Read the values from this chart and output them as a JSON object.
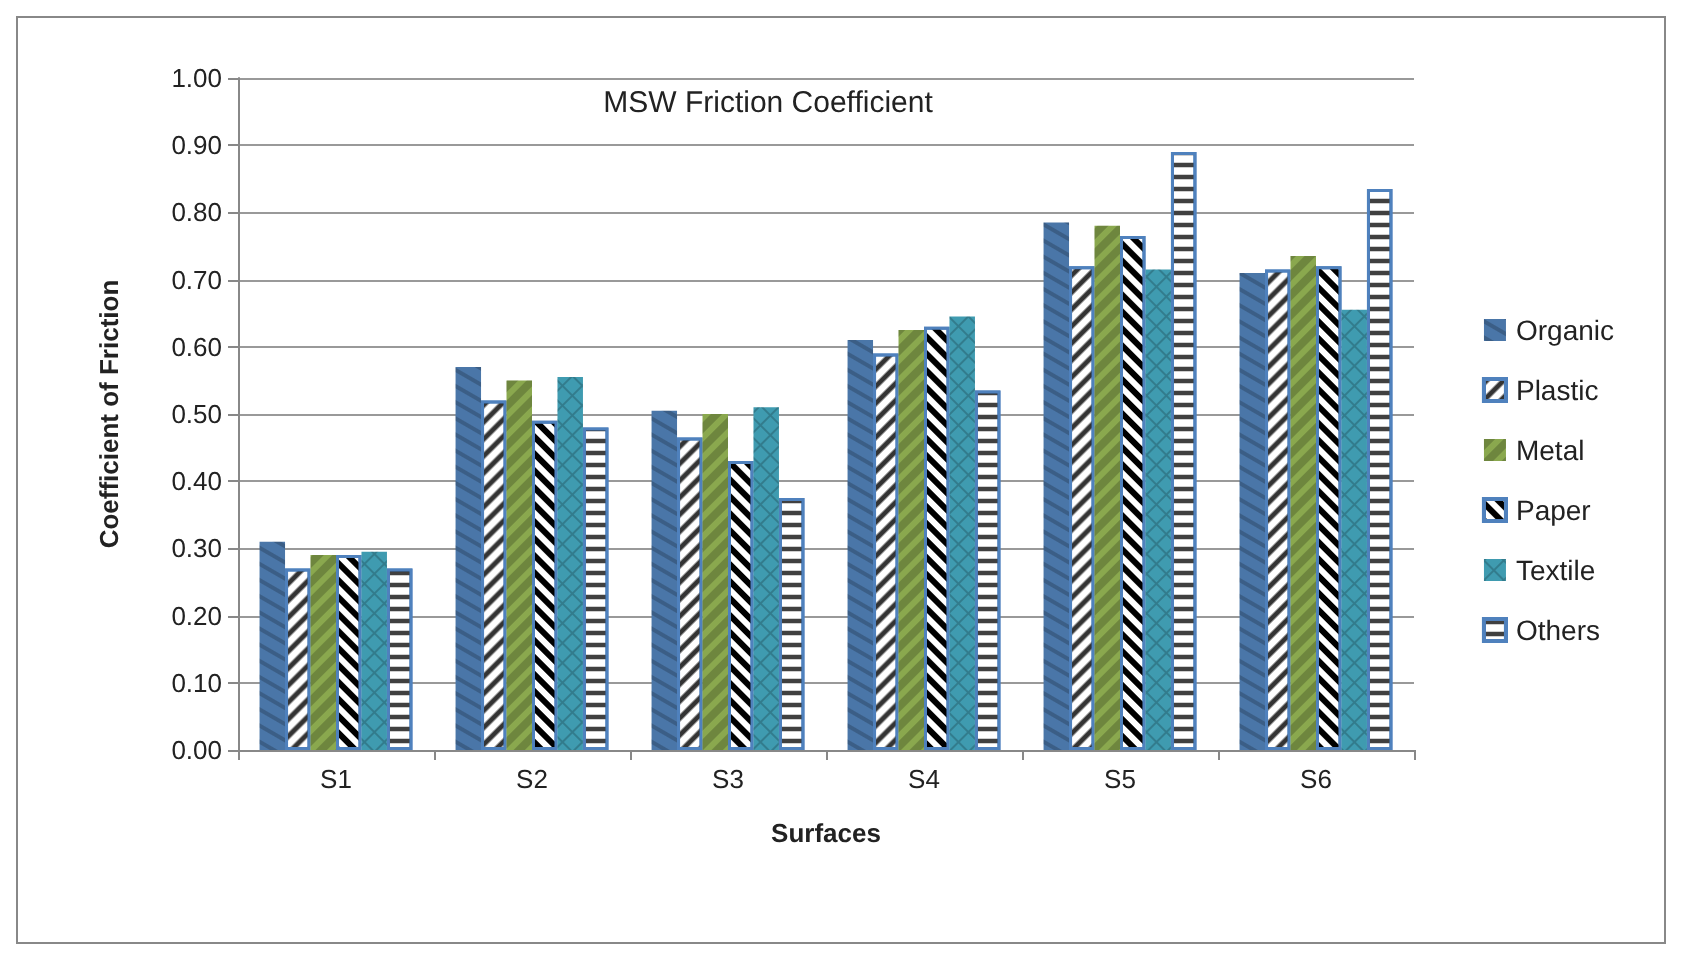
{
  "chart_data": {
    "type": "bar",
    "title": "MSW Friction Coefficient",
    "xlabel": "Surfaces",
    "ylabel": "Coefficient of Friction",
    "categories": [
      "S1",
      "S2",
      "S3",
      "S4",
      "S5",
      "S6"
    ],
    "series": [
      {
        "name": "Organic",
        "color": "#4a76a8",
        "values": [
          0.31,
          0.57,
          0.505,
          0.61,
          0.785,
          0.71
        ]
      },
      {
        "name": "Plastic",
        "color": "#ffffff",
        "values": [
          0.27,
          0.52,
          0.465,
          0.59,
          0.72,
          0.715
        ]
      },
      {
        "name": "Metal",
        "color": "#8aa84e",
        "values": [
          0.29,
          0.55,
          0.5,
          0.625,
          0.78,
          0.735
        ]
      },
      {
        "name": "Paper",
        "color": "#ffffff",
        "values": [
          0.29,
          0.49,
          0.43,
          0.63,
          0.765,
          0.72
        ]
      },
      {
        "name": "Textile",
        "color": "#3f9bb0",
        "values": [
          0.295,
          0.555,
          0.51,
          0.645,
          0.715,
          0.655
        ]
      },
      {
        "name": "Others",
        "color": "#ffffff",
        "values": [
          0.27,
          0.48,
          0.375,
          0.535,
          0.89,
          0.835
        ]
      }
    ],
    "ylim": [
      0,
      1
    ],
    "yticks": [
      {
        "value": 0,
        "label": "0.00"
      },
      {
        "value": 0.1,
        "label": "0.10"
      },
      {
        "value": 0.2,
        "label": "0.20"
      },
      {
        "value": 0.3,
        "label": "0.30"
      },
      {
        "value": 0.4,
        "label": "0.40"
      },
      {
        "value": 0.5,
        "label": "0.50"
      },
      {
        "value": 0.6,
        "label": "0.60"
      },
      {
        "value": 0.7,
        "label": "0.70"
      },
      {
        "value": 0.8,
        "label": "0.80"
      },
      {
        "value": 0.9,
        "label": "0.90"
      },
      {
        "value": 1,
        "label": "1.00"
      }
    ],
    "grid": "y",
    "legend": "right"
  }
}
